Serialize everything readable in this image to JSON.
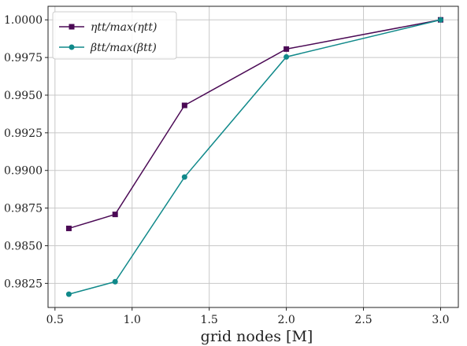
{
  "chart_data": {
    "type": "line",
    "xlabel": "grid nodes [M]",
    "ylabel": "",
    "xlim": [
      0.455,
      3.115
    ],
    "ylim": [
      0.9809,
      1.0009
    ],
    "xticks": [
      0.5,
      1.0,
      1.5,
      2.0,
      2.5,
      3.0
    ],
    "xtick_labels": [
      "0.5",
      "1.0",
      "1.5",
      "2.0",
      "2.5",
      "3.0"
    ],
    "yticks": [
      0.9825,
      0.985,
      0.9875,
      0.99,
      0.9925,
      0.995,
      0.9975,
      1.0
    ],
    "ytick_labels": [
      "0.9825",
      "0.9850",
      "0.9875",
      "0.9900",
      "0.9925",
      "0.9950",
      "0.9975",
      "1.0000"
    ],
    "grid": true,
    "legend_position": "top-left",
    "series": [
      {
        "name": "ηtt/max(ηtt)",
        "color": "#4b0a55",
        "marker": "square",
        "x": [
          0.59,
          0.89,
          1.34,
          2.0,
          3.0
        ],
        "y": [
          0.98615,
          0.98708,
          0.99432,
          0.99806,
          1.0
        ]
      },
      {
        "name": "βtt/max(βtt)",
        "color": "#10898a",
        "marker": "circle",
        "x": [
          0.59,
          0.89,
          1.34,
          2.0,
          3.0
        ],
        "y": [
          0.98178,
          0.98261,
          0.98956,
          0.99754,
          1.0
        ]
      }
    ]
  }
}
